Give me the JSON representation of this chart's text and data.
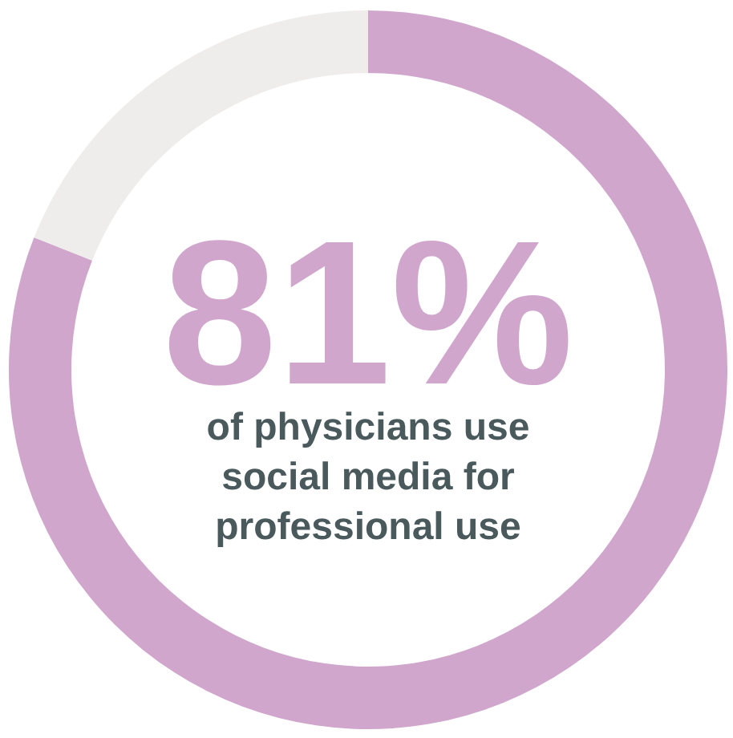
{
  "chart_data": {
    "type": "donut",
    "categories": [
      null,
      null
    ],
    "values": [
      81,
      19
    ],
    "colors": [
      "#d0a6cc",
      "#eeedeb"
    ],
    "annotations": [
      "81%",
      "of physicians use\nsocial media for\nprofessional use"
    ]
  }
}
